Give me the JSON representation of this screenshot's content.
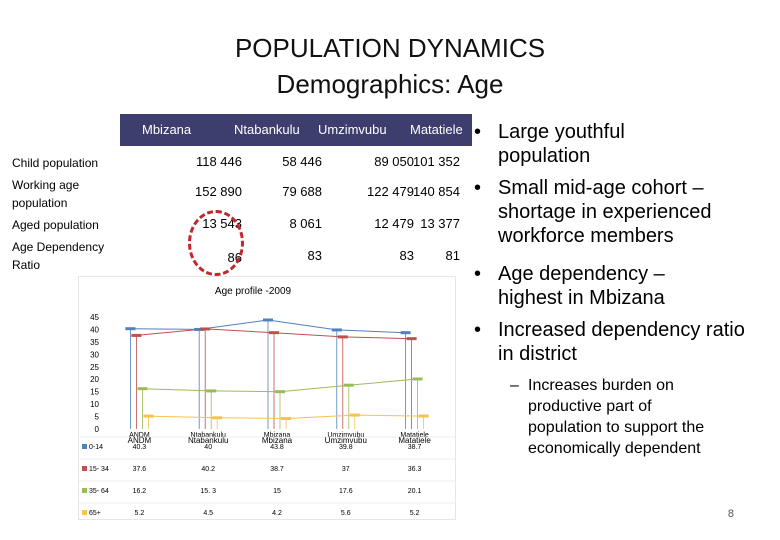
{
  "slide": {
    "title_line1": "POPULATION DYNAMICS",
    "title_line2": "Demographics: Age",
    "page_number": "8"
  },
  "table": {
    "columns": [
      "Mbizana",
      "Ntabankulu",
      "Umzimvubu",
      "Matatiele"
    ],
    "rows": [
      {
        "label": "Child population",
        "values": [
          "118 446",
          "58 446",
          "89 050",
          "101 352"
        ]
      },
      {
        "label": "Working age population",
        "values": [
          "152 890",
          "79 688",
          "122 479",
          "140 854"
        ]
      },
      {
        "label": "Aged population",
        "values": [
          "13 543",
          "8 061",
          "12 479",
          "13 377"
        ]
      },
      {
        "label": "Age Dependency Ratio",
        "values": [
          "86",
          "83",
          "83",
          "81"
        ]
      }
    ]
  },
  "bullets": [
    "Large youthful population",
    "Small mid-age cohort – shortage in experienced workforce members",
    "Age dependency – highest in Mbizana",
    "Increased dependency ratio in district"
  ],
  "sub_bullet": "Increases burden on productive part of population to support the economically dependent",
  "chart_data": {
    "type": "line",
    "title": "Age profile -2009",
    "categories": [
      "ANDM",
      "Ntabankulu",
      "Mbizana",
      "Umzimvubu",
      "Matatiele"
    ],
    "category_labels_overlap": [
      "ANDM",
      "Ntabankulu",
      "Mbizana",
      "Umzimvubu",
      "Matatiele"
    ],
    "ylim": [
      0,
      45
    ],
    "yticks": [
      "45",
      "40",
      "35",
      "30",
      "25",
      "20",
      "15",
      "10",
      "5",
      "0"
    ],
    "series": [
      {
        "name": "0-14",
        "values": [
          40.3,
          40,
          43.8,
          39.8,
          38.7
        ],
        "display": [
          "40.3",
          "40",
          "43.8",
          "39.8",
          "38.7"
        ],
        "color": "#4f81bd"
      },
      {
        "name": "15- 34",
        "values": [
          37.6,
          40.2,
          38.7,
          37,
          36.3
        ],
        "display": [
          "37.6",
          "40.2",
          "38.7",
          "37",
          "36.3"
        ],
        "color": "#c0504d"
      },
      {
        "name": "35- 64",
        "values": [
          16.2,
          15.3,
          15,
          17.6,
          20.1
        ],
        "display": [
          "16.2",
          "15. 3",
          "15",
          "17.6",
          "20.1"
        ],
        "color": "#9bbb59"
      },
      {
        "name": "65+",
        "values": [
          5.2,
          4.5,
          4.2,
          5.6,
          5.2
        ],
        "display": [
          "5.2",
          "4.5",
          "4.2",
          "5.6",
          "5.2"
        ],
        "color": "#f7c34b"
      }
    ]
  }
}
